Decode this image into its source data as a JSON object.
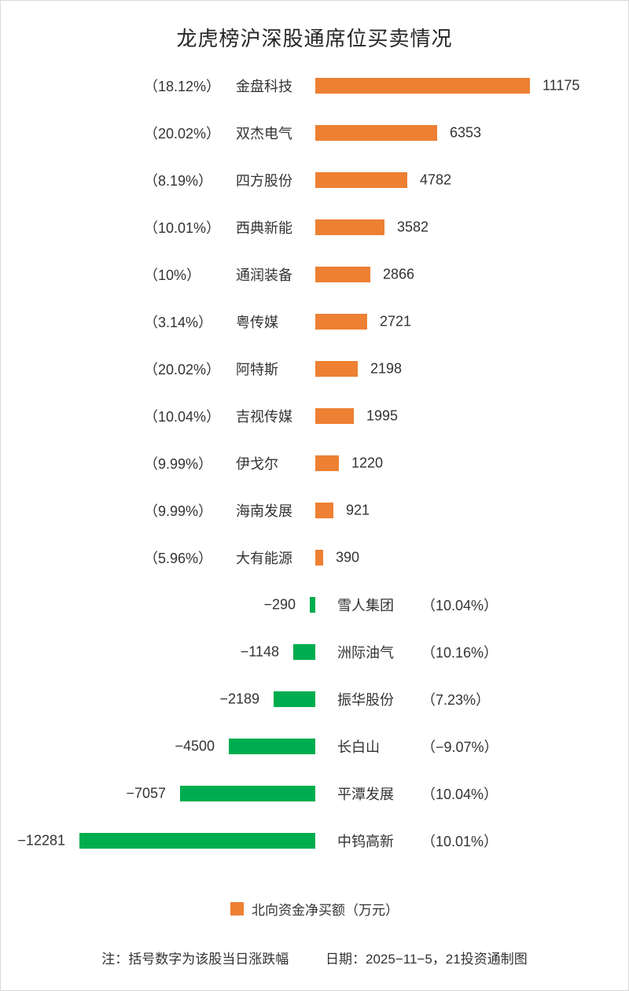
{
  "title": "龙虎榜沪深股通席位买卖情况",
  "colors": {
    "positive_bar": "#ED8033",
    "negative_bar": "#00AD4E",
    "text": "#333333",
    "border": "#D9D9D9"
  },
  "chart_data": {
    "type": "bar",
    "orientation": "horizontal",
    "unit": "万元",
    "series_name": "北向资金净买额（万元）",
    "xlim": [
      -12281,
      11175
    ],
    "grid": false,
    "note": "括号数字为该股当日涨跌幅",
    "rows": [
      {
        "name": "金盘科技",
        "value": 11175,
        "label": "11175",
        "change_pct": "（18.12%）"
      },
      {
        "name": "双杰电气",
        "value": 6353,
        "label": "6353",
        "change_pct": "（20.02%）"
      },
      {
        "name": "四方股份",
        "value": 4782,
        "label": "4782",
        "change_pct": "（8.19%）"
      },
      {
        "name": "西典新能",
        "value": 3582,
        "label": "3582",
        "change_pct": "（10.01%）"
      },
      {
        "name": "通润装备",
        "value": 2866,
        "label": "2866",
        "change_pct": "（10%）"
      },
      {
        "name": "粤传媒",
        "value": 2721,
        "label": "2721",
        "change_pct": "（3.14%）"
      },
      {
        "name": "阿特斯",
        "value": 2198,
        "label": "2198",
        "change_pct": "（20.02%）"
      },
      {
        "name": "吉视传媒",
        "value": 1995,
        "label": "1995",
        "change_pct": "（10.04%）"
      },
      {
        "name": "伊戈尔",
        "value": 1220,
        "label": "1220",
        "change_pct": "（9.99%）"
      },
      {
        "name": "海南发展",
        "value": 921,
        "label": "921",
        "change_pct": "（9.99%）"
      },
      {
        "name": "大有能源",
        "value": 390,
        "label": "390",
        "change_pct": "（5.96%）"
      },
      {
        "name": "雪人集团",
        "value": -290,
        "label": "−290",
        "change_pct": "（10.04%）"
      },
      {
        "name": "洲际油气",
        "value": -1148,
        "label": "−1148",
        "change_pct": "（10.16%）"
      },
      {
        "name": "振华股份",
        "value": -2189,
        "label": "−2189",
        "change_pct": "（7.23%）"
      },
      {
        "name": "长白山",
        "value": -4500,
        "label": "−4500",
        "change_pct": "（−9.07%）"
      },
      {
        "name": "平潭发展",
        "value": -7057,
        "label": "−7057",
        "change_pct": "（10.04%）"
      },
      {
        "name": "中钨高新",
        "value": -12281,
        "label": "−12281",
        "change_pct": "（10.01%）"
      }
    ]
  },
  "legend": {
    "label": "北向资金净买额（万元）"
  },
  "footer": {
    "note": "注：括号数字为该股当日涨跌幅",
    "date": "日期：2025−11−5，21投资通制图"
  }
}
